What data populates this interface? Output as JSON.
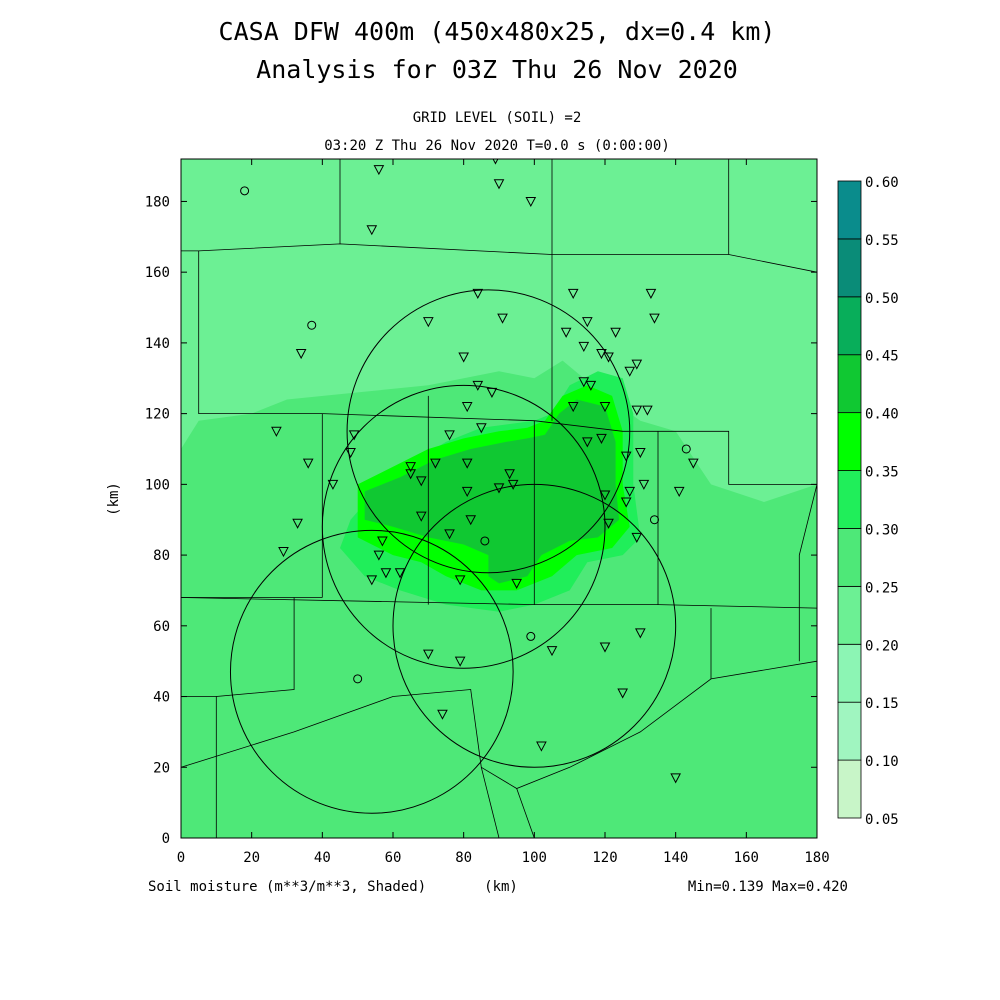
{
  "chart_data": {
    "type": "heatmap",
    "title_line1": "CASA DFW 400m (450x480x25, dx=0.4 km)",
    "title_line2": "Analysis for 03Z Thu 26 Nov 2020",
    "subtitle_line1": "GRID LEVEL (SOIL) =2",
    "subtitle_line2": "03:20 Z Thu 26 Nov 2020   T=0.0 s (0:00:00)",
    "xlabel": "(km)",
    "ylabel": "(km)",
    "variable_label": "Soil moisture (m**3/m**3, Shaded)",
    "minmax_label": "Min=0.139 Max=0.420",
    "xlim": [
      0,
      180
    ],
    "ylim": [
      0,
      192
    ],
    "x_ticks": [
      "0",
      "20",
      "40",
      "60",
      "80",
      "100",
      "120",
      "140",
      "160",
      "180"
    ],
    "y_ticks": [
      "0",
      "20",
      "40",
      "60",
      "80",
      "100",
      "120",
      "140",
      "160",
      "180"
    ],
    "colorbar": {
      "levels": [
        "0.05",
        "0.10",
        "0.15",
        "0.20",
        "0.25",
        "0.30",
        "0.35",
        "0.40",
        "0.45",
        "0.50",
        "0.55",
        "0.60"
      ],
      "colors": [
        "#c8f5c8",
        "#a0f5c0",
        "#8cf5b4",
        "#6cf094",
        "#4ee878",
        "#20ee5a",
        "#00ff00",
        "#10c832",
        "#08ae5a",
        "#0a8c78",
        "#0a8c8c",
        "#1464ff"
      ]
    },
    "regions": [
      {
        "level": 0.2,
        "poly": [
          [
            0,
            0
          ],
          [
            180,
            0
          ],
          [
            180,
            192
          ],
          [
            0,
            192
          ]
        ]
      },
      {
        "level": 0.25,
        "poly": [
          [
            0,
            0
          ],
          [
            180,
            0
          ],
          [
            180,
            100
          ],
          [
            165,
            95
          ],
          [
            150,
            100
          ],
          [
            140,
            115
          ],
          [
            130,
            118
          ],
          [
            120,
            125
          ],
          [
            108,
            135
          ],
          [
            100,
            130
          ],
          [
            90,
            132
          ],
          [
            70,
            128
          ],
          [
            50,
            126
          ],
          [
            30,
            124
          ],
          [
            20,
            120
          ],
          [
            5,
            118
          ],
          [
            0,
            110
          ]
        ]
      },
      {
        "level": 0.3,
        "poly": [
          [
            45,
            82
          ],
          [
            48,
            90
          ],
          [
            55,
            98
          ],
          [
            65,
            106
          ],
          [
            75,
            112
          ],
          [
            85,
            116
          ],
          [
            100,
            118
          ],
          [
            105,
            120
          ],
          [
            110,
            128
          ],
          [
            118,
            132
          ],
          [
            125,
            130
          ],
          [
            128,
            120
          ],
          [
            128,
            100
          ],
          [
            130,
            85
          ],
          [
            125,
            80
          ],
          [
            115,
            78
          ],
          [
            110,
            70
          ],
          [
            100,
            66
          ],
          [
            90,
            64
          ],
          [
            75,
            66
          ],
          [
            62,
            70
          ],
          [
            52,
            74
          ]
        ]
      },
      {
        "level": 0.35,
        "poly": [
          [
            50,
            85
          ],
          [
            50,
            100
          ],
          [
            60,
            105
          ],
          [
            70,
            110
          ],
          [
            80,
            113
          ],
          [
            90,
            115
          ],
          [
            98,
            116
          ],
          [
            103,
            118
          ],
          [
            108,
            125
          ],
          [
            115,
            128
          ],
          [
            122,
            125
          ],
          [
            125,
            115
          ],
          [
            125,
            100
          ],
          [
            127,
            88
          ],
          [
            122,
            82
          ],
          [
            112,
            80
          ],
          [
            105,
            74
          ],
          [
            95,
            70
          ],
          [
            85,
            70
          ],
          [
            75,
            74
          ],
          [
            68,
            78
          ],
          [
            60,
            80
          ]
        ]
      },
      {
        "level": 0.4,
        "poly": [
          [
            52,
            90
          ],
          [
            52,
            98
          ],
          [
            62,
            102
          ],
          [
            72,
            107
          ],
          [
            82,
            110
          ],
          [
            92,
            112
          ],
          [
            98,
            113
          ],
          [
            103,
            114
          ],
          [
            107,
            120
          ],
          [
            112,
            124
          ],
          [
            120,
            122
          ],
          [
            123,
            112
          ],
          [
            123,
            100
          ],
          [
            124,
            90
          ],
          [
            118,
            85
          ],
          [
            110,
            84
          ],
          [
            102,
            80
          ],
          [
            98,
            74
          ],
          [
            90,
            72
          ],
          [
            87,
            74
          ],
          [
            87,
            80
          ],
          [
            80,
            83
          ],
          [
            70,
            85
          ],
          [
            60,
            88
          ]
        ]
      }
    ],
    "circles": [
      {
        "cx": 87,
        "cy": 115,
        "r": 40
      },
      {
        "cx": 80,
        "cy": 88,
        "r": 40
      },
      {
        "cx": 54,
        "cy": 47,
        "r": 40
      },
      {
        "cx": 100,
        "cy": 60,
        "r": 40
      }
    ],
    "boundaries": [
      [
        [
          0,
          166
        ],
        [
          5,
          166
        ],
        [
          5,
          120
        ],
        [
          40,
          120
        ],
        [
          100,
          118
        ],
        [
          125,
          115
        ],
        [
          155,
          115
        ],
        [
          155,
          100
        ],
        [
          180,
          100
        ]
      ],
      [
        [
          5,
          166
        ],
        [
          45,
          168
        ],
        [
          105,
          165
        ],
        [
          155,
          165
        ],
        [
          180,
          160
        ]
      ],
      [
        [
          45,
          192
        ],
        [
          45,
          168
        ]
      ],
      [
        [
          105,
          192
        ],
        [
          105,
          165
        ]
      ],
      [
        [
          105,
          165
        ],
        [
          105,
          118
        ]
      ],
      [
        [
          155,
          192
        ],
        [
          155,
          165
        ]
      ],
      [
        [
          40,
          120
        ],
        [
          40,
          68
        ]
      ],
      [
        [
          40,
          68
        ],
        [
          0,
          68
        ]
      ],
      [
        [
          0,
          68
        ],
        [
          100,
          66
        ],
        [
          135,
          66
        ],
        [
          180,
          65
        ]
      ],
      [
        [
          135,
          115
        ],
        [
          135,
          66
        ]
      ],
      [
        [
          100,
          118
        ],
        [
          100,
          66
        ]
      ],
      [
        [
          70,
          125
        ],
        [
          70,
          66
        ]
      ],
      [
        [
          10,
          0
        ],
        [
          10,
          40
        ],
        [
          32,
          42
        ],
        [
          32,
          68
        ]
      ],
      [
        [
          0,
          20
        ],
        [
          32,
          30
        ],
        [
          60,
          40
        ],
        [
          82,
          42
        ],
        [
          85,
          20
        ],
        [
          95,
          14
        ],
        [
          110,
          20
        ],
        [
          130,
          30
        ],
        [
          150,
          45
        ],
        [
          180,
          50
        ]
      ],
      [
        [
          85,
          20
        ],
        [
          90,
          0
        ]
      ],
      [
        [
          95,
          14
        ],
        [
          100,
          0
        ]
      ],
      [
        [
          180,
          100
        ],
        [
          175,
          80
        ],
        [
          175,
          50
        ]
      ],
      [
        [
          150,
          45
        ],
        [
          150,
          65
        ]
      ],
      [
        [
          0,
          40
        ],
        [
          10,
          40
        ]
      ]
    ],
    "stations": [
      {
        "x": 18,
        "y": 183,
        "m": "o"
      },
      {
        "x": 37,
        "y": 145,
        "m": "o"
      },
      {
        "x": 143,
        "y": 110,
        "m": "o"
      },
      {
        "x": 134,
        "y": 90,
        "m": "o"
      },
      {
        "x": 86,
        "y": 84,
        "m": "o"
      },
      {
        "x": 99,
        "y": 57,
        "m": "o"
      },
      {
        "x": 50,
        "y": 45,
        "m": "o"
      },
      {
        "x": 56,
        "y": 189,
        "m": "v"
      },
      {
        "x": 89,
        "y": 192,
        "m": "v"
      },
      {
        "x": 90,
        "y": 185,
        "m": "v"
      },
      {
        "x": 99,
        "y": 180,
        "m": "v"
      },
      {
        "x": 54,
        "y": 172,
        "m": "v"
      },
      {
        "x": 84,
        "y": 154,
        "m": "v"
      },
      {
        "x": 111,
        "y": 154,
        "m": "v"
      },
      {
        "x": 133,
        "y": 154,
        "m": "v"
      },
      {
        "x": 70,
        "y": 146,
        "m": "v"
      },
      {
        "x": 91,
        "y": 147,
        "m": "v"
      },
      {
        "x": 115,
        "y": 146,
        "m": "v"
      },
      {
        "x": 134,
        "y": 147,
        "m": "v"
      },
      {
        "x": 109,
        "y": 143,
        "m": "v"
      },
      {
        "x": 123,
        "y": 143,
        "m": "v"
      },
      {
        "x": 34,
        "y": 137,
        "m": "v"
      },
      {
        "x": 80,
        "y": 136,
        "m": "v"
      },
      {
        "x": 114,
        "y": 139,
        "m": "v"
      },
      {
        "x": 119,
        "y": 137,
        "m": "v"
      },
      {
        "x": 121,
        "y": 136,
        "m": "v"
      },
      {
        "x": 127,
        "y": 132,
        "m": "v"
      },
      {
        "x": 129,
        "y": 134,
        "m": "v"
      },
      {
        "x": 84,
        "y": 128,
        "m": "v"
      },
      {
        "x": 88,
        "y": 126,
        "m": "v"
      },
      {
        "x": 114,
        "y": 129,
        "m": "v"
      },
      {
        "x": 116,
        "y": 128,
        "m": "v"
      },
      {
        "x": 111,
        "y": 122,
        "m": "v"
      },
      {
        "x": 120,
        "y": 122,
        "m": "v"
      },
      {
        "x": 129,
        "y": 121,
        "m": "v"
      },
      {
        "x": 132,
        "y": 121,
        "m": "v"
      },
      {
        "x": 81,
        "y": 122,
        "m": "v"
      },
      {
        "x": 27,
        "y": 115,
        "m": "v"
      },
      {
        "x": 49,
        "y": 114,
        "m": "v"
      },
      {
        "x": 76,
        "y": 114,
        "m": "v"
      },
      {
        "x": 85,
        "y": 116,
        "m": "v"
      },
      {
        "x": 115,
        "y": 112,
        "m": "v"
      },
      {
        "x": 119,
        "y": 113,
        "m": "v"
      },
      {
        "x": 48,
        "y": 109,
        "m": "v"
      },
      {
        "x": 126,
        "y": 108,
        "m": "v"
      },
      {
        "x": 130,
        "y": 109,
        "m": "v"
      },
      {
        "x": 145,
        "y": 106,
        "m": "v"
      },
      {
        "x": 36,
        "y": 106,
        "m": "v"
      },
      {
        "x": 65,
        "y": 105,
        "m": "v"
      },
      {
        "x": 72,
        "y": 106,
        "m": "v"
      },
      {
        "x": 81,
        "y": 106,
        "m": "v"
      },
      {
        "x": 65,
        "y": 103,
        "m": "v"
      },
      {
        "x": 93,
        "y": 103,
        "m": "v"
      },
      {
        "x": 68,
        "y": 101,
        "m": "v"
      },
      {
        "x": 43,
        "y": 100,
        "m": "v"
      },
      {
        "x": 90,
        "y": 99,
        "m": "v"
      },
      {
        "x": 94,
        "y": 100,
        "m": "v"
      },
      {
        "x": 81,
        "y": 98,
        "m": "v"
      },
      {
        "x": 127,
        "y": 98,
        "m": "v"
      },
      {
        "x": 131,
        "y": 100,
        "m": "v"
      },
      {
        "x": 120,
        "y": 97,
        "m": "v"
      },
      {
        "x": 141,
        "y": 98,
        "m": "v"
      },
      {
        "x": 126,
        "y": 95,
        "m": "v"
      },
      {
        "x": 68,
        "y": 91,
        "m": "v"
      },
      {
        "x": 33,
        "y": 89,
        "m": "v"
      },
      {
        "x": 82,
        "y": 90,
        "m": "v"
      },
      {
        "x": 121,
        "y": 89,
        "m": "v"
      },
      {
        "x": 76,
        "y": 86,
        "m": "v"
      },
      {
        "x": 129,
        "y": 85,
        "m": "v"
      },
      {
        "x": 57,
        "y": 84,
        "m": "v"
      },
      {
        "x": 29,
        "y": 81,
        "m": "v"
      },
      {
        "x": 56,
        "y": 80,
        "m": "v"
      },
      {
        "x": 58,
        "y": 75,
        "m": "v"
      },
      {
        "x": 62,
        "y": 75,
        "m": "v"
      },
      {
        "x": 54,
        "y": 73,
        "m": "v"
      },
      {
        "x": 79,
        "y": 73,
        "m": "v"
      },
      {
        "x": 95,
        "y": 72,
        "m": "v"
      },
      {
        "x": 130,
        "y": 58,
        "m": "v"
      },
      {
        "x": 120,
        "y": 54,
        "m": "v"
      },
      {
        "x": 105,
        "y": 53,
        "m": "v"
      },
      {
        "x": 70,
        "y": 52,
        "m": "v"
      },
      {
        "x": 79,
        "y": 50,
        "m": "v"
      },
      {
        "x": 125,
        "y": 41,
        "m": "v"
      },
      {
        "x": 74,
        "y": 35,
        "m": "v"
      },
      {
        "x": 102,
        "y": 26,
        "m": "v"
      },
      {
        "x": 140,
        "y": 17,
        "m": "v"
      }
    ]
  }
}
